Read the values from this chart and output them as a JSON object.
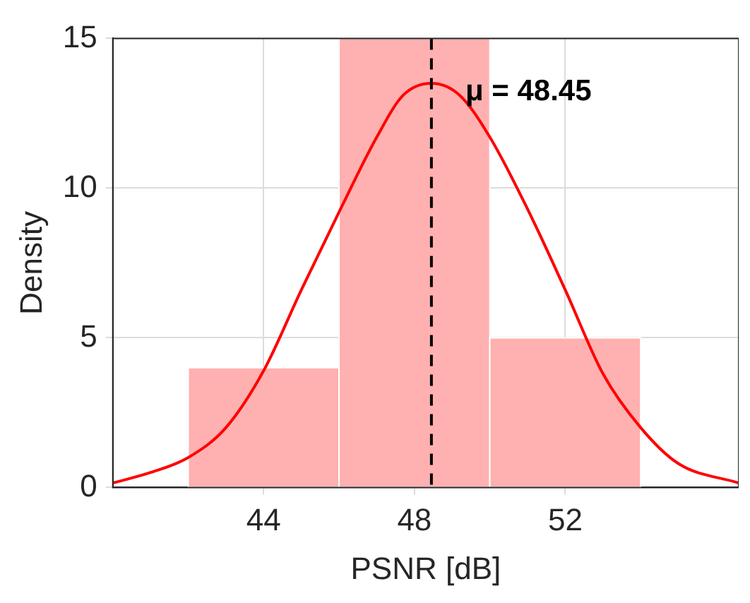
{
  "chart_data": {
    "type": "histogram",
    "xlabel": "PSNR [dB]",
    "ylabel": "Density",
    "bins": [
      42,
      46,
      50,
      54
    ],
    "values": [
      4,
      15,
      5
    ],
    "color": "#ffb0b0",
    "series": [
      {
        "type": "line",
        "color": "#ff0000",
        "x": [
          40,
          41,
          42,
          43,
          44,
          45,
          46,
          47,
          47.7,
          48.45,
          49.2,
          50,
          51,
          52,
          53,
          54,
          55,
          56.6
        ],
        "values": [
          0.15,
          0.5,
          1,
          2,
          3.9,
          6.6,
          9.2,
          11.7,
          13.1,
          13.5,
          13.1,
          11.7,
          9.3,
          6.6,
          3.8,
          2,
          0.8,
          0.15
        ]
      }
    ],
    "ref_lines": [
      {
        "axis": "x",
        "value": 48.45,
        "label": "μ = 48.45",
        "color": "#000000",
        "line_style": "dashed"
      }
    ],
    "xlim": [
      40,
      56.6
    ],
    "xticks": [
      44,
      48,
      52
    ],
    "ylim": [
      0,
      15
    ],
    "yticks": [
      0,
      5,
      10,
      15
    ],
    "grid": true,
    "legend": false
  }
}
